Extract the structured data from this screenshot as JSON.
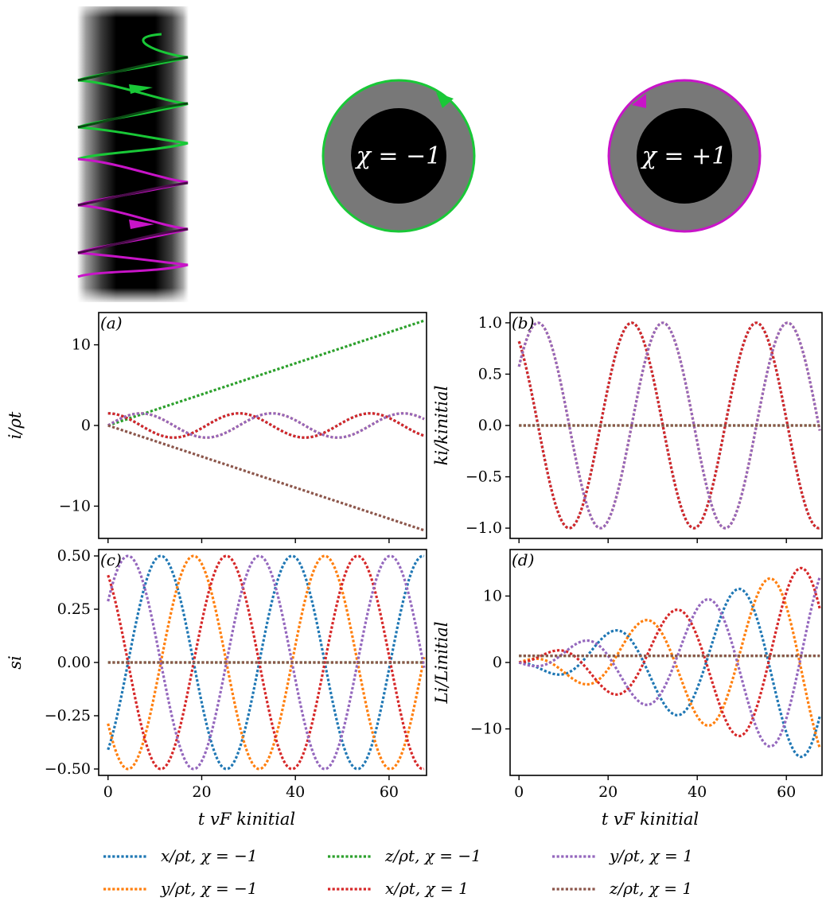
{
  "figure": {
    "illustration": {
      "chirality_left": "χ = −1",
      "chirality_right": "χ = +1",
      "colors": {
        "chi_minus": "#19c837",
        "chi_plus": "#c814c8",
        "ring": "#787878",
        "core": "#000000"
      }
    },
    "series_colors": [
      "#1f77b4",
      "#ff7f0e",
      "#2ca02c",
      "#d62728",
      "#9467bd",
      "#8c564b"
    ],
    "legend": {
      "entries": [
        "x/ρt,  χ = −1",
        "y/ρt,  χ = −1",
        "z/ρt,  χ = −1",
        "x/ρt,  χ = 1",
        "y/ρt,  χ = 1",
        "z/ρt,  χ = 1"
      ]
    }
  },
  "chart_data": [
    {
      "type": "line",
      "panel_label": "(a)",
      "ylabel": "i/ρt",
      "xlabel": "",
      "xlim": [
        -2,
        68
      ],
      "ylim": [
        -14,
        14
      ],
      "xticks": [
        0,
        20,
        40,
        60
      ],
      "yticks": [
        -10,
        0,
        10
      ],
      "ytick_labels": [
        "−10",
        "0",
        "10"
      ],
      "grid": false,
      "line_style": "dotted",
      "series": [
        {
          "kind": "cos",
          "amplitude": 1.5,
          "period": 28,
          "phase_deg": 0,
          "x_range": [
            0,
            67.5
          ]
        },
        {
          "kind": "cos",
          "amplitude": 1.5,
          "period": 28,
          "phase_deg": -90,
          "x_range": [
            0,
            67.5
          ]
        },
        {
          "kind": "linear",
          "points": [
            [
              0,
              0
            ],
            [
              67.5,
              13
            ]
          ]
        },
        {
          "kind": "cos",
          "amplitude": 1.5,
          "period": 28,
          "phase_deg": 0,
          "x_range": [
            0,
            67.5
          ]
        },
        {
          "kind": "cos",
          "amplitude": 1.5,
          "period": 28,
          "phase_deg": -90,
          "x_range": [
            0,
            67.5
          ]
        },
        {
          "kind": "linear",
          "points": [
            [
              0,
              0
            ],
            [
              67.5,
              -13
            ]
          ]
        }
      ]
    },
    {
      "type": "line",
      "panel_label": "(b)",
      "ylabel": "ki/kinitial",
      "xlabel": "",
      "xlim": [
        -2,
        68
      ],
      "ylim": [
        -1.1,
        1.1
      ],
      "xticks": [
        0,
        20,
        40,
        60
      ],
      "yticks": [
        -1.0,
        -0.5,
        0.0,
        0.5,
        1.0
      ],
      "ytick_labels": [
        "−1.0",
        "−0.5",
        "0.0",
        "0.5",
        "1.0"
      ],
      "grid": false,
      "line_style": "dotted",
      "series": [
        {
          "kind": "cos",
          "amplitude": 1.0,
          "period": 28,
          "phase_deg": 35,
          "x_range": [
            0,
            67.5
          ]
        },
        {
          "kind": "cos",
          "amplitude": 1.0,
          "period": 28,
          "phase_deg": -55,
          "x_range": [
            0,
            67.5
          ]
        },
        {
          "kind": "linear",
          "points": [
            [
              0,
              0
            ],
            [
              67.5,
              0
            ]
          ]
        },
        {
          "kind": "cos",
          "amplitude": 1.0,
          "period": 28,
          "phase_deg": 35,
          "x_range": [
            0,
            67.5
          ]
        },
        {
          "kind": "cos",
          "amplitude": 1.0,
          "period": 28,
          "phase_deg": -55,
          "x_range": [
            0,
            67.5
          ]
        },
        {
          "kind": "linear",
          "points": [
            [
              0,
              0
            ],
            [
              67.5,
              0
            ]
          ]
        }
      ]
    },
    {
      "type": "line",
      "panel_label": "(c)",
      "ylabel": "si",
      "xlabel": "t vF kinitial",
      "xlim": [
        -2,
        68
      ],
      "ylim": [
        -0.53,
        0.53
      ],
      "xticks": [
        0,
        20,
        40,
        60
      ],
      "xtick_labels": [
        "0",
        "20",
        "40",
        "60"
      ],
      "yticks": [
        -0.5,
        -0.25,
        0.0,
        0.25,
        0.5
      ],
      "ytick_labels": [
        "−0.50",
        "−0.25",
        "0.00",
        "0.25",
        "0.50"
      ],
      "grid": false,
      "line_style": "dotted",
      "series": [
        {
          "kind": "cos",
          "amplitude": 0.5,
          "period": 28,
          "phase_deg": 215,
          "x_range": [
            0,
            67.5
          ]
        },
        {
          "kind": "cos",
          "amplitude": 0.5,
          "period": 28,
          "phase_deg": 125,
          "x_range": [
            0,
            67.5
          ]
        },
        {
          "kind": "linear",
          "points": [
            [
              0,
              0
            ],
            [
              67.5,
              0
            ]
          ]
        },
        {
          "kind": "cos",
          "amplitude": 0.5,
          "period": 28,
          "phase_deg": 35,
          "x_range": [
            0,
            67.5
          ]
        },
        {
          "kind": "cos",
          "amplitude": 0.5,
          "period": 28,
          "phase_deg": -55,
          "x_range": [
            0,
            67.5
          ]
        },
        {
          "kind": "linear",
          "points": [
            [
              0,
              0
            ],
            [
              67.5,
              0
            ]
          ]
        }
      ]
    },
    {
      "type": "line",
      "panel_label": "(d)",
      "ylabel": "Li/Linitial",
      "xlabel": "t vF kinitial",
      "xlim": [
        -2,
        68
      ],
      "ylim": [
        -17,
        17
      ],
      "xticks": [
        0,
        20,
        40,
        60
      ],
      "xtick_labels": [
        "0",
        "20",
        "40",
        "60"
      ],
      "yticks": [
        -10,
        0,
        10
      ],
      "ytick_labels": [
        "−10",
        "0",
        "10"
      ],
      "grid": false,
      "line_style": "dotted",
      "series": [
        {
          "kind": "growing_sin",
          "slope": 0.225,
          "period": 28,
          "phase_deg": 0,
          "sign": -1,
          "x_range": [
            0,
            67.5
          ]
        },
        {
          "kind": "growing_sin",
          "slope": 0.225,
          "period": 28,
          "phase_deg": 90,
          "sign": 1,
          "x_range": [
            0,
            67.5
          ]
        },
        {
          "kind": "linear",
          "points": [
            [
              0,
              1
            ],
            [
              67.5,
              1
            ]
          ]
        },
        {
          "kind": "growing_sin",
          "slope": 0.225,
          "period": 28,
          "phase_deg": 0,
          "sign": 1,
          "x_range": [
            0,
            67.5
          ]
        },
        {
          "kind": "growing_sin",
          "slope": 0.225,
          "period": 28,
          "phase_deg": 90,
          "sign": -1,
          "x_range": [
            0,
            67.5
          ]
        },
        {
          "kind": "linear",
          "points": [
            [
              0,
              1
            ],
            [
              67.5,
              1
            ]
          ]
        }
      ]
    }
  ]
}
